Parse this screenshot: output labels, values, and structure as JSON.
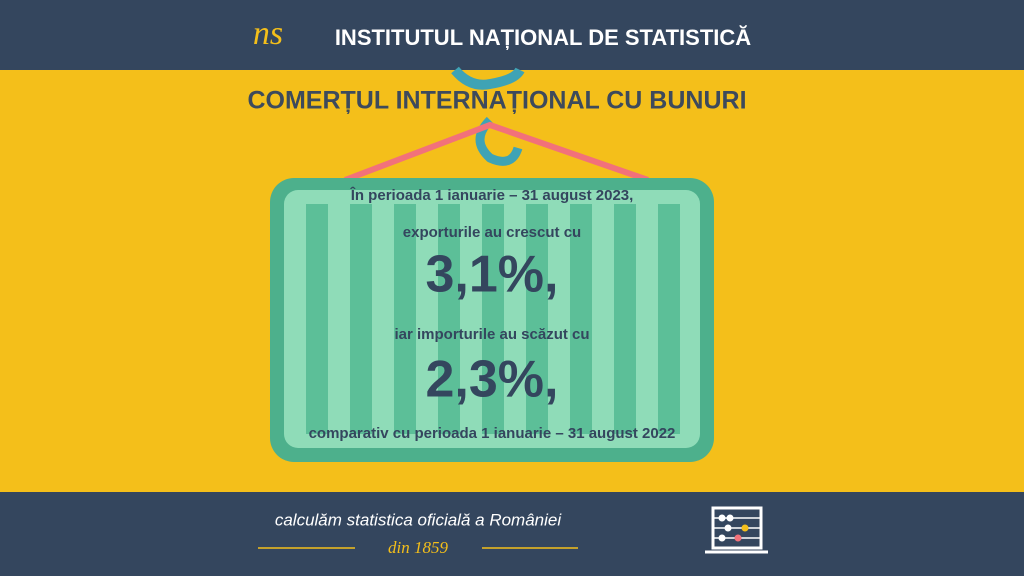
{
  "header": {
    "logo": "ns",
    "title": "INSTITUTUL NAȚIONAL DE STATISTICĂ"
  },
  "title": "COMERȚUL INTERNAȚIONAL CU BUNURI",
  "sign": {
    "lines": [
      "În perioada 1 ianuarie – 31 august 2023,",
      "exporturile au crescut cu",
      "3,1%,",
      "iar importurile au scăzut cu",
      "2,3%,",
      "comparativ cu perioada 1 ianuarie – 31 august 2022"
    ]
  },
  "footer": {
    "motto": "calculăm statistica oficială a României",
    "since": "din 1859"
  }
}
